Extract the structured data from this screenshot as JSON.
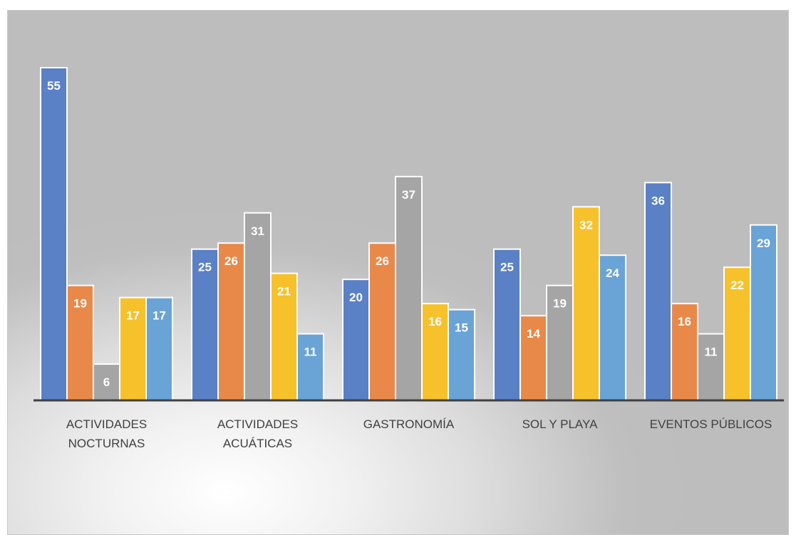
{
  "chart_data": {
    "type": "bar",
    "title": "",
    "xlabel": "",
    "ylabel": "",
    "ylim": [
      0,
      56
    ],
    "grid": false,
    "categories": [
      [
        "ACTIVIDADES",
        "NOCTURNAS"
      ],
      [
        "ACTIVIDADES",
        "ACUÁTICAS"
      ],
      [
        "GASTRONOMÍA"
      ],
      [
        "SOL Y PLAYA"
      ],
      [
        "EVENTOS PÚBLICOS"
      ]
    ],
    "series": [
      {
        "values": [
          55,
          25,
          20,
          25,
          36
        ],
        "color": "#5a80c6"
      },
      {
        "values": [
          19,
          26,
          26,
          14,
          16
        ],
        "color": "#e8894a"
      },
      {
        "values": [
          6,
          31,
          37,
          19,
          11
        ],
        "color": "#a5a5a5"
      },
      {
        "values": [
          17,
          21,
          16,
          32,
          22
        ],
        "color": "#f7c12b"
      },
      {
        "values": [
          17,
          11,
          15,
          24,
          29
        ],
        "color": "#6aa3d6"
      }
    ],
    "axis_color": "#404040"
  }
}
